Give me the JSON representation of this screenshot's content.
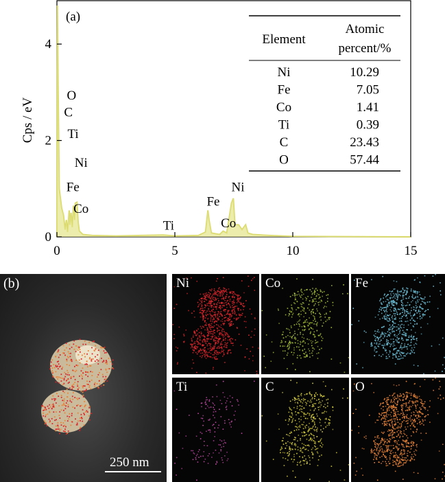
{
  "chart_data": {
    "type": "line",
    "panel_label": "(a)",
    "ylabel": "Cps / eV",
    "xlim": [
      0,
      15
    ],
    "ylim": [
      0,
      5
    ],
    "x_ticks": [
      "0",
      "5",
      "10",
      "15"
    ],
    "y_ticks": [
      "0",
      "2",
      "4"
    ],
    "color": "#d9d96a",
    "spectrum": [
      [
        0.0,
        0.0
      ],
      [
        0.02,
        4.8
      ],
      [
        0.05,
        3.2
      ],
      [
        0.1,
        1.0
      ],
      [
        0.2,
        0.6
      ],
      [
        0.28,
        0.45
      ],
      [
        0.35,
        0.15
      ],
      [
        0.4,
        0.35
      ],
      [
        0.45,
        0.1
      ],
      [
        0.52,
        0.55
      ],
      [
        0.55,
        0.25
      ],
      [
        0.6,
        0.5
      ],
      [
        0.65,
        0.2
      ],
      [
        0.7,
        0.65
      ],
      [
        0.75,
        0.35
      ],
      [
        0.78,
        0.7
      ],
      [
        0.85,
        0.72
      ],
      [
        0.9,
        0.3
      ],
      [
        0.95,
        0.12
      ],
      [
        1.1,
        0.05
      ],
      [
        1.5,
        0.03
      ],
      [
        2.5,
        0.02
      ],
      [
        4.5,
        0.04
      ],
      [
        5.0,
        0.02
      ],
      [
        6.0,
        0.03
      ],
      [
        6.3,
        0.1
      ],
      [
        6.4,
        0.55
      ],
      [
        6.45,
        0.35
      ],
      [
        6.55,
        0.08
      ],
      [
        6.9,
        0.05
      ],
      [
        7.05,
        0.12
      ],
      [
        7.2,
        0.08
      ],
      [
        7.4,
        0.7
      ],
      [
        7.48,
        0.8
      ],
      [
        7.55,
        0.25
      ],
      [
        7.7,
        0.25
      ],
      [
        7.85,
        0.15
      ],
      [
        8.0,
        0.25
      ],
      [
        8.1,
        0.08
      ],
      [
        8.3,
        0.05
      ],
      [
        9.0,
        0.03
      ],
      [
        10.0,
        0.01
      ],
      [
        15.0,
        0.0
      ]
    ],
    "peak_labels": [
      {
        "text": "O",
        "x": 0.42,
        "y": 2.85
      },
      {
        "text": "C",
        "x": 0.3,
        "y": 2.5
      },
      {
        "text": "Ti",
        "x": 0.45,
        "y": 2.05
      },
      {
        "text": "Ni",
        "x": 0.75,
        "y": 1.45
      },
      {
        "text": "Fe",
        "x": 0.4,
        "y": 0.95
      },
      {
        "text": "Co",
        "x": 0.7,
        "y": 0.5
      },
      {
        "text": "Ti",
        "x": 4.5,
        "y": 0.15
      },
      {
        "text": "Fe",
        "x": 6.35,
        "y": 0.65
      },
      {
        "text": "Co",
        "x": 6.95,
        "y": 0.2
      },
      {
        "text": "Ni",
        "x": 7.4,
        "y": 0.95
      }
    ],
    "table": {
      "headers": [
        "Element",
        "Atomic\npercent/%"
      ],
      "header_2_lines": [
        "Atomic",
        "percent/%"
      ],
      "rows": [
        [
          "Ni",
          "10.29"
        ],
        [
          "Fe",
          "7.05"
        ],
        [
          "Co",
          "1.41"
        ],
        [
          "Ti",
          "0.39"
        ],
        [
          "C",
          "23.43"
        ],
        [
          "O",
          "57.44"
        ]
      ]
    }
  },
  "panel_b": {
    "label": "(b)",
    "scalebar": "250 nm",
    "maps": [
      {
        "label": "Ni",
        "color": "#d8262c",
        "density": 0.95
      },
      {
        "label": "Co",
        "color": "#a9c33a",
        "density": 0.35
      },
      {
        "label": "Fe",
        "color": "#6ec0d8",
        "density": 0.7
      },
      {
        "label": "Ti",
        "color": "#c24aa6",
        "density": 0.1
      },
      {
        "label": "C",
        "color": "#d8d040",
        "density": 0.4
      },
      {
        "label": "O",
        "color": "#e8843a",
        "density": 0.85
      }
    ]
  }
}
